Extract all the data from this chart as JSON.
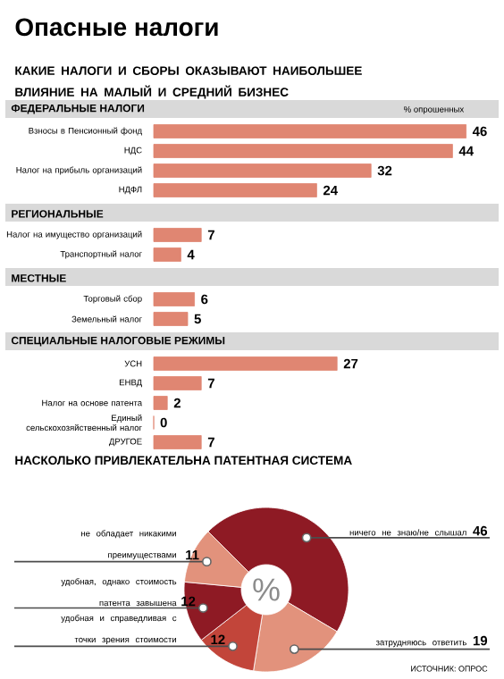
{
  "chart_data": [
    {
      "type": "bar",
      "orientation": "horizontal",
      "title": "Опасные налоги",
      "subtitle": "КАКИЕ НАЛОГИ И СБОРЫ ОКАЗЫВАЮТ НАИБОЛЬШЕЕ ВЛИЯНИЕ НА МАЛЫЙ И СРЕДНИЙ БИЗНЕС",
      "ylabel": "ФЕДЕРАЛЬНЫЕ НАЛОГИ",
      "xlabel": "% опрошенных",
      "categories": [
        "Взносы в Пенсионный фонд",
        "НДС",
        "Налог на прибыль организаций",
        "НДФЛ"
      ],
      "values": [
        46,
        44,
        32,
        24
      ],
      "color": "#e08672",
      "data_labels": true
    },
    {
      "type": "bar",
      "orientation": "horizontal",
      "ylabel": "РЕГИОНАЛЬНЫЕ",
      "categories": [
        "Налог на имущество организаций",
        "Транспортный налог"
      ],
      "values": [
        7,
        4
      ],
      "color": "#e08672",
      "data_labels": true
    },
    {
      "type": "bar",
      "orientation": "horizontal",
      "ylabel": "МЕСТНЫЕ",
      "categories": [
        "Торговый сбор",
        "Земельный налог"
      ],
      "values": [
        6,
        5
      ],
      "color": "#e08672",
      "data_labels": true
    },
    {
      "type": "bar",
      "orientation": "horizontal",
      "ylabel": "СПЕЦИАЛЬНЫЕ НАЛОГОВЫЕ РЕЖИМЫ",
      "categories": [
        "УСН",
        "ЕНВД",
        "Налог на основе патента",
        "Единый сельскохозяйственный налог",
        "ДРУГОЕ"
      ],
      "values": [
        27,
        7,
        2,
        0,
        7
      ],
      "color": "#e08672",
      "data_labels": true
    },
    {
      "type": "donut",
      "title": "НАСКОЛЬКО ПРИВЛЕКАТЕЛЬНА ПАТЕНТНАЯ СИСТЕМА",
      "categories": [
        "ничего не знаю/не слышал",
        "затрудняюсь ответить",
        "удобная и справедливая с точки зрения стоимости",
        "удобная, однако стоимость патента завышена",
        "не обладает никакими преимуществами"
      ],
      "values": [
        46,
        19,
        12,
        12,
        11
      ],
      "colors": [
        "#8e1a24",
        "#e2927c",
        "#c2453a",
        "#8e1a24",
        "#e2927c"
      ],
      "data_labels": true,
      "annotations": [
        "%",
        "ИСТОЧНИК: ОПРОС"
      ]
    }
  ]
}
